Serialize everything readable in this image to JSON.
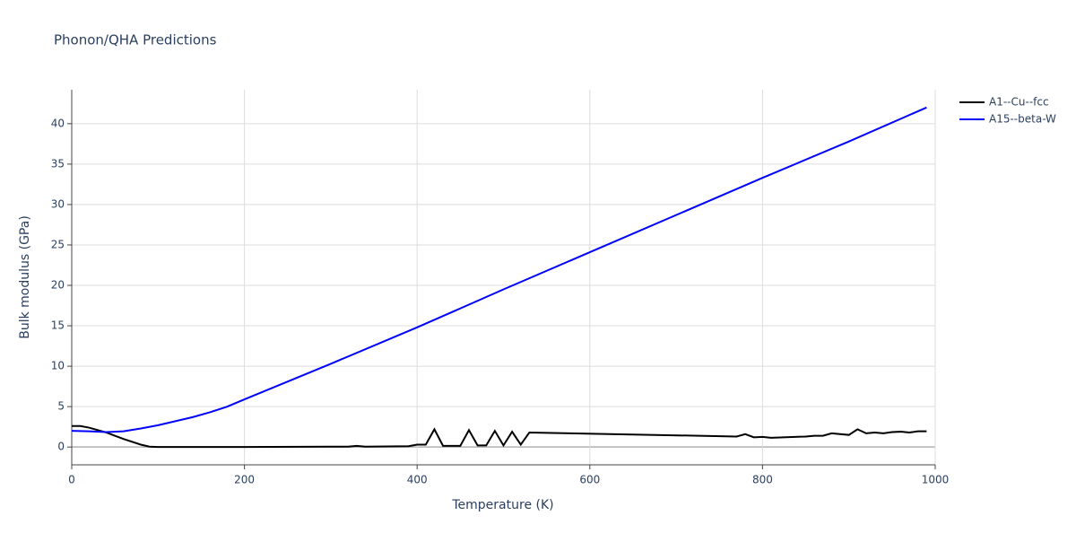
{
  "chart_data": {
    "type": "line",
    "title": "Phonon/QHA Predictions",
    "x_label": "Temperature (K)",
    "y_label": "Bulk modulus (GPa)",
    "xlim": [
      0,
      1000
    ],
    "xticks": [
      0,
      200,
      400,
      600,
      800,
      1000
    ],
    "ylim": [
      -2.2,
      44.2
    ],
    "yticks": [
      0,
      5,
      10,
      15,
      20,
      25,
      30,
      35,
      40
    ],
    "grid": true,
    "legend": "top-right",
    "series": [
      {
        "name": "A1--Cu--fcc",
        "color": "#000000",
        "x": [
          0,
          10,
          20,
          40,
          60,
          80,
          90,
          100,
          200,
          300,
          320,
          330,
          340,
          390,
          400,
          410,
          420,
          430,
          450,
          460,
          470,
          480,
          490,
          500,
          510,
          520,
          530,
          770,
          780,
          790,
          800,
          810,
          850,
          860,
          870,
          880,
          900,
          910,
          920,
          930,
          940,
          950,
          960,
          970,
          980,
          990
        ],
        "values": [
          2.6,
          2.6,
          2.4,
          1.8,
          1.0,
          0.3,
          0.05,
          0,
          0,
          0.05,
          0.05,
          0.15,
          0.05,
          0.1,
          0.3,
          0.3,
          2.2,
          0.15,
          0.15,
          2.1,
          0.2,
          0.2,
          2.0,
          0.2,
          1.9,
          0.3,
          1.8,
          1.3,
          1.6,
          1.2,
          1.25,
          1.15,
          1.3,
          1.4,
          1.4,
          1.7,
          1.5,
          2.2,
          1.7,
          1.8,
          1.7,
          1.85,
          1.9,
          1.8,
          1.95,
          1.95
        ]
      },
      {
        "name": "A15--beta-W",
        "color": "#0000ff",
        "x": [
          0,
          20,
          40,
          60,
          80,
          100,
          120,
          140,
          160,
          180,
          200,
          300,
          400,
          500,
          600,
          700,
          800,
          900,
          990
        ],
        "values": [
          2.0,
          1.95,
          1.85,
          1.95,
          2.3,
          2.7,
          3.2,
          3.7,
          4.3,
          5.0,
          5.9,
          10.3,
          14.8,
          19.5,
          24.1,
          28.7,
          33.3,
          37.8,
          42.0
        ]
      }
    ]
  }
}
